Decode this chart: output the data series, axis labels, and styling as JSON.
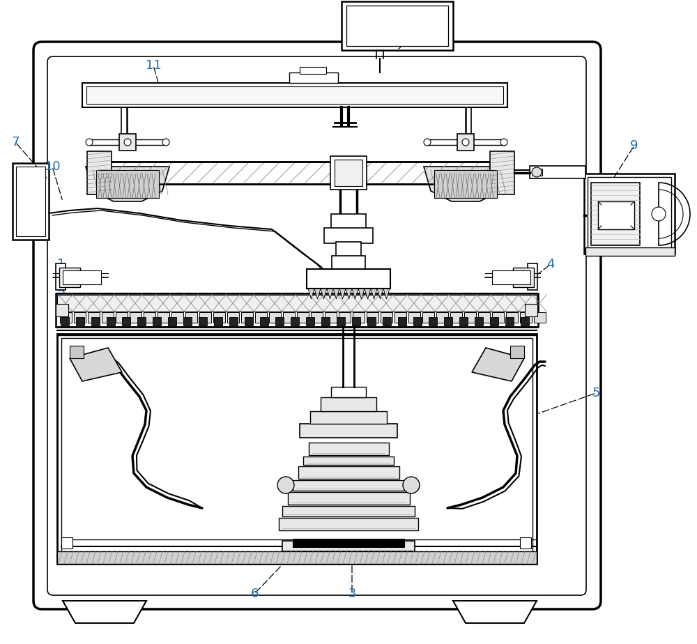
{
  "bg_color": "#ffffff",
  "line_color": "#000000",
  "label_color": "#1a6eb5",
  "fig_width": 10.0,
  "fig_height": 9.24
}
